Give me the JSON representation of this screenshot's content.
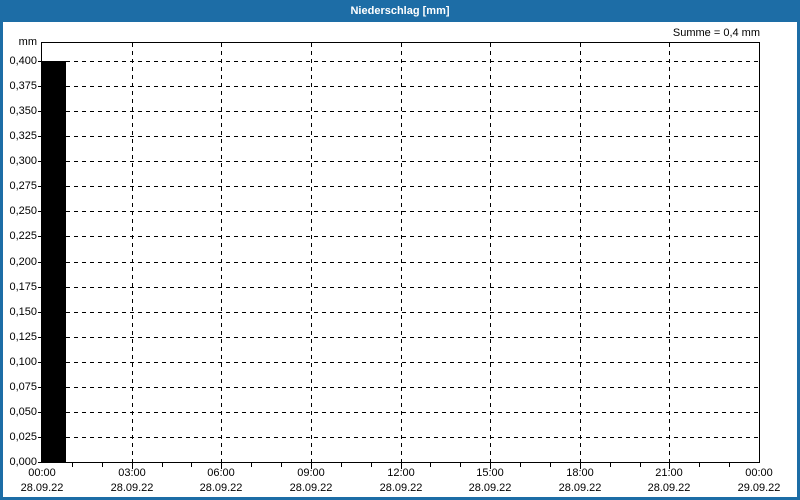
{
  "window": {
    "title": "Niederschlag [mm]",
    "titlebar_color": "#1d6da6",
    "frame_color": "#1d6da6",
    "background_color": "#ffffff"
  },
  "chart_data": {
    "type": "bar",
    "title": "Niederschlag [mm]",
    "summary": "Summe = 0,4 mm",
    "unit_label": "mm",
    "grid": "dashed",
    "legend": "none",
    "plot_background": "#ffffff",
    "axis_color": "#000000",
    "bar_color": "#000000",
    "ylim": [
      0,
      0.418
    ],
    "yticks": [
      {
        "value": 0.0,
        "label": "0,000"
      },
      {
        "value": 0.025,
        "label": "0,025"
      },
      {
        "value": 0.05,
        "label": "0,050"
      },
      {
        "value": 0.075,
        "label": "0,075"
      },
      {
        "value": 0.1,
        "label": "0,100"
      },
      {
        "value": 0.125,
        "label": "0,125"
      },
      {
        "value": 0.15,
        "label": "0,150"
      },
      {
        "value": 0.175,
        "label": "0,175"
      },
      {
        "value": 0.2,
        "label": "0,200"
      },
      {
        "value": 0.225,
        "label": "0,225"
      },
      {
        "value": 0.25,
        "label": "0,250"
      },
      {
        "value": 0.275,
        "label": "0,275"
      },
      {
        "value": 0.3,
        "label": "0,300"
      },
      {
        "value": 0.325,
        "label": "0,325"
      },
      {
        "value": 0.35,
        "label": "0,350"
      },
      {
        "value": 0.375,
        "label": "0,375"
      },
      {
        "value": 0.4,
        "label": "0,400"
      }
    ],
    "x_hours_total": 24,
    "x_minor_step_hours": 1,
    "x_gridline_hours": [
      3,
      6,
      9,
      12,
      15,
      18,
      21
    ],
    "xticks": [
      {
        "hour": 0,
        "time": "00:00",
        "date": "28.09.22"
      },
      {
        "hour": 3,
        "time": "03:00",
        "date": "28.09.22"
      },
      {
        "hour": 6,
        "time": "06:00",
        "date": "28.09.22"
      },
      {
        "hour": 9,
        "time": "09:00",
        "date": "28.09.22"
      },
      {
        "hour": 12,
        "time": "12:00",
        "date": "28.09.22"
      },
      {
        "hour": 15,
        "time": "15:00",
        "date": "28.09.22"
      },
      {
        "hour": 18,
        "time": "18:00",
        "date": "28.09.22"
      },
      {
        "hour": 21,
        "time": "21:00",
        "date": "28.09.22"
      },
      {
        "hour": 24,
        "time": "00:00",
        "date": "29.09.22"
      }
    ],
    "bars": [
      {
        "start_hour": 0.0,
        "end_hour": 0.8,
        "value": 0.4
      }
    ]
  }
}
